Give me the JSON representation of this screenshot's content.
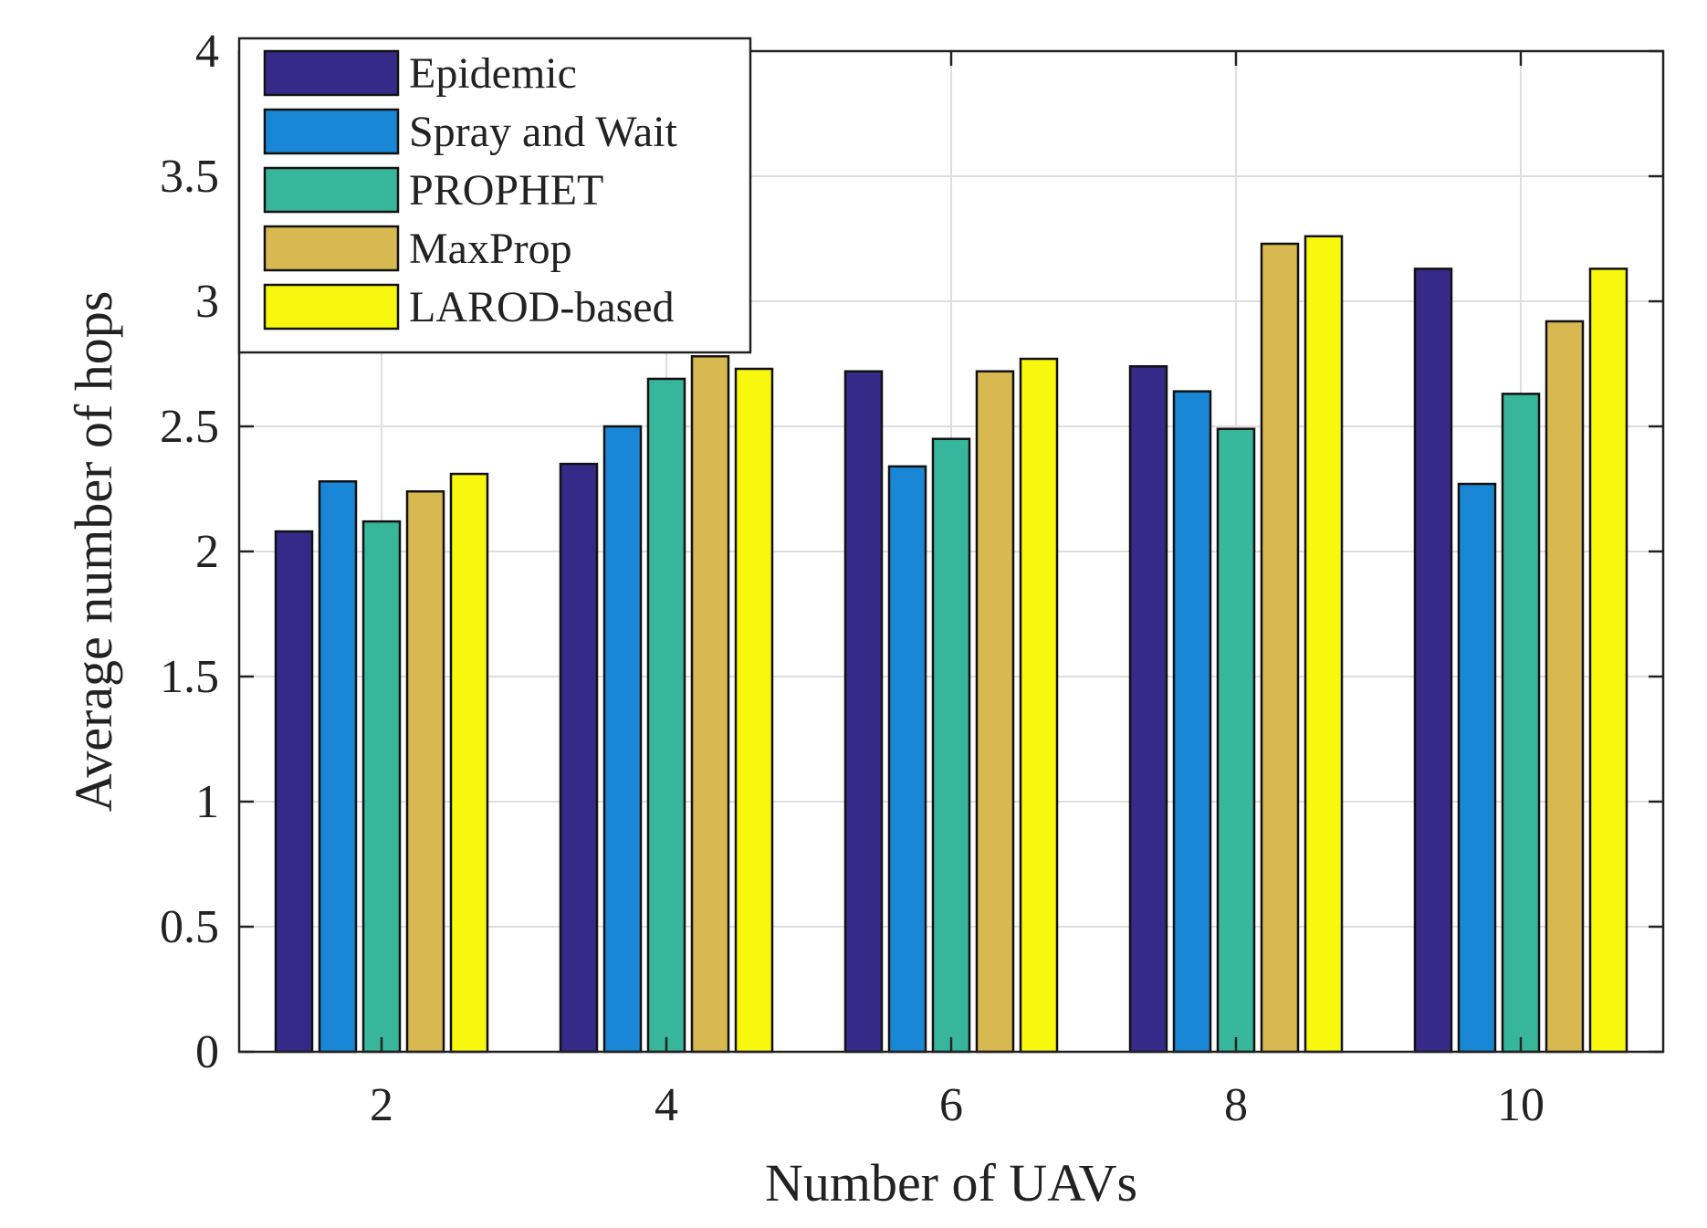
{
  "chart_data": {
    "type": "bar",
    "xlabel": "Number of UAVs",
    "ylabel": "Average number of hops",
    "categories": [
      "2",
      "4",
      "6",
      "8",
      "10"
    ],
    "ylim": [
      0,
      4
    ],
    "yticks": [
      "0",
      "0.5",
      "1",
      "1.5",
      "2",
      "2.5",
      "3",
      "3.5",
      "4"
    ],
    "grid": true,
    "legend_position": "top-left",
    "series": [
      {
        "name": "Epidemic",
        "color": "#352A87",
        "values": [
          2.08,
          2.35,
          2.72,
          2.74,
          3.13
        ]
      },
      {
        "name": "Spray and Wait",
        "color": "#1A87D6",
        "values": [
          2.28,
          2.5,
          2.34,
          2.64,
          2.27
        ]
      },
      {
        "name": "PROPHET",
        "color": "#38B69B",
        "values": [
          2.12,
          2.69,
          2.45,
          2.49,
          2.63
        ]
      },
      {
        "name": "MaxProp",
        "color": "#D8B851",
        "values": [
          2.24,
          2.78,
          2.72,
          3.23,
          2.92
        ]
      },
      {
        "name": "LAROD-based",
        "color": "#F8F80F",
        "values": [
          2.31,
          2.73,
          2.77,
          3.26,
          3.13
        ]
      }
    ]
  }
}
